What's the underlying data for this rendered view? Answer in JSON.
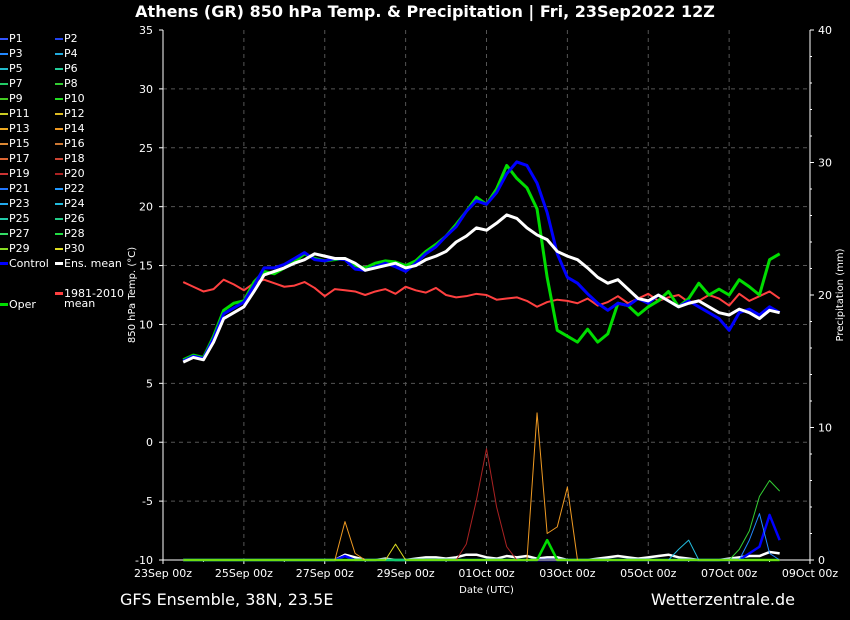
{
  "title": "Athens  (GR)  850 hPa Temp. & Precipitation | Fri, 23Sep2022 12Z",
  "footer_left": "GFS Ensemble, 38N, 23.5E",
  "footer_right": "Wetterzentrale.de",
  "colors": {
    "control": "#0000ff",
    "ens_mean": "#ffffff",
    "climate": "#ff4040",
    "oper": "#00dd00"
  },
  "legend": {
    "members": [
      {
        "label": "P1",
        "color": "#3355ff"
      },
      {
        "label": "P2",
        "color": "#2244ee"
      },
      {
        "label": "P3",
        "color": "#2288ff"
      },
      {
        "label": "P4",
        "color": "#22aadd"
      },
      {
        "label": "P5",
        "color": "#22bbcc"
      },
      {
        "label": "P6",
        "color": "#22cc99"
      },
      {
        "label": "P7",
        "color": "#22cc66"
      },
      {
        "label": "P8",
        "color": "#33cc33"
      },
      {
        "label": "P9",
        "color": "#44cc22"
      },
      {
        "label": "P10",
        "color": "#22dd22"
      },
      {
        "label": "P11",
        "color": "#cccc22"
      },
      {
        "label": "P12",
        "color": "#ddbb22"
      },
      {
        "label": "P13",
        "color": "#eeaa22"
      },
      {
        "label": "P14",
        "color": "#ee9922"
      },
      {
        "label": "P15",
        "color": "#dd8833"
      },
      {
        "label": "P16",
        "color": "#cc7733"
      },
      {
        "label": "P17",
        "color": "#dd6633"
      },
      {
        "label": "P18",
        "color": "#cc4433"
      },
      {
        "label": "P19",
        "color": "#cc3333"
      },
      {
        "label": "P20",
        "color": "#aa2222"
      },
      {
        "label": "P21",
        "color": "#2277ff"
      },
      {
        "label": "P22",
        "color": "#2299ff"
      },
      {
        "label": "P23",
        "color": "#22aaee"
      },
      {
        "label": "P24",
        "color": "#22bbdd"
      },
      {
        "label": "P25",
        "color": "#22ccaa"
      },
      {
        "label": "P26",
        "color": "#22cc88"
      },
      {
        "label": "P27",
        "color": "#33dd66"
      },
      {
        "label": "P28",
        "color": "#22dd44"
      },
      {
        "label": "P29",
        "color": "#88dd22"
      },
      {
        "label": "P30",
        "color": "#dddd22"
      }
    ],
    "control": "Control",
    "ens_mean": "Ens. mean",
    "climate_line1": "1981-2010",
    "climate_line2": "mean",
    "oper": "Oper"
  },
  "chart_data": {
    "type": "line",
    "title": "Athens  (GR)  850 hPa Temp. & Precipitation | Fri, 23Sep2022 12Z",
    "xlabel": "Date (UTC)",
    "ylabel": "850 hPa Temp. (°C)",
    "y2label": "Precipitation (mm)",
    "xlim": [
      0,
      16
    ],
    "ylim": [
      -10,
      35
    ],
    "y2lim": [
      0,
      40
    ],
    "x_ticks": [
      0,
      2,
      4,
      6,
      8,
      10,
      12,
      14,
      16
    ],
    "x_tick_labels": [
      "23Sep 00z",
      "25Sep 00z",
      "27Sep 00z",
      "29Sep 00z",
      "01Oct 00z",
      "03Oct 00z",
      "05Oct 00z",
      "07Oct 00z",
      "09Oct 00z"
    ],
    "y_ticks": [
      -10,
      -5,
      0,
      5,
      10,
      15,
      20,
      25,
      30,
      35
    ],
    "y2_ticks": [
      0,
      10,
      20,
      30,
      40
    ],
    "grid": true,
    "x_step_days": 0.25,
    "x_start": 0.5,
    "series": [
      {
        "name": "Ens. mean",
        "role": "ens_mean",
        "values": [
          6.8,
          7.2,
          7.0,
          8.5,
          10.5,
          11.0,
          11.5,
          12.8,
          14.2,
          14.5,
          14.8,
          15.2,
          15.5,
          16.0,
          15.8,
          15.6,
          15.6,
          15.2,
          14.6,
          14.8,
          15.0,
          15.2,
          14.8,
          15.0,
          15.5,
          15.8,
          16.2,
          17.0,
          17.5,
          18.2,
          18.0,
          18.6,
          19.3,
          19.0,
          18.2,
          17.6,
          17.2,
          16.2,
          15.8,
          15.5,
          14.8,
          14.0,
          13.5,
          13.8,
          13.0,
          12.2,
          12.0,
          12.5,
          12.0,
          11.5,
          11.8,
          12.0,
          11.5,
          11.0,
          10.8,
          11.3,
          11.0,
          10.5,
          11.2,
          11.0
        ]
      },
      {
        "name": "Control",
        "role": "control",
        "values": [
          6.9,
          7.3,
          7.1,
          8.8,
          10.9,
          11.4,
          11.9,
          13.3,
          14.8,
          14.8,
          15.1,
          15.6,
          16.1,
          15.5,
          15.4,
          15.6,
          15.5,
          14.7,
          14.6,
          14.9,
          15.2,
          14.9,
          14.5,
          15.2,
          16.0,
          16.6,
          17.5,
          18.3,
          19.6,
          20.5,
          20.2,
          21.2,
          22.8,
          23.8,
          23.5,
          22.0,
          19.5,
          16.0,
          14.0,
          13.5,
          12.6,
          11.8,
          11.2,
          11.8,
          11.6,
          12.2,
          11.8,
          12.5,
          12.0,
          11.5,
          12.0,
          11.5,
          11.0,
          10.5,
          9.5,
          11.0,
          11.3,
          10.8,
          11.5,
          11.0
        ]
      },
      {
        "name": "Oper",
        "role": "oper",
        "values": [
          7.0,
          7.4,
          7.2,
          9.0,
          11.2,
          11.8,
          12.0,
          13.6,
          14.5,
          14.3,
          14.8,
          15.3,
          16.0,
          15.6,
          15.4,
          15.5,
          15.6,
          15.0,
          14.8,
          15.2,
          15.4,
          15.3,
          15.0,
          15.4,
          16.2,
          16.8,
          17.5,
          18.5,
          19.6,
          20.8,
          20.2,
          21.5,
          23.5,
          22.4,
          21.6,
          19.8,
          14.0,
          9.5,
          9.0,
          8.5,
          9.6,
          8.5,
          9.2,
          11.8,
          11.6,
          10.8,
          11.5,
          12.0,
          12.8,
          11.5,
          12.2,
          13.5,
          12.5,
          13.0,
          12.5,
          13.8,
          13.2,
          12.5,
          15.5,
          16.0
        ]
      },
      {
        "name": "1981-2010 mean",
        "role": "climate",
        "values": [
          13.6,
          13.2,
          12.8,
          13.0,
          13.8,
          13.4,
          12.9,
          13.5,
          13.8,
          13.5,
          13.2,
          13.3,
          13.6,
          13.1,
          12.4,
          13.0,
          12.9,
          12.8,
          12.5,
          12.8,
          13.0,
          12.6,
          13.2,
          12.9,
          12.7,
          13.1,
          12.5,
          12.3,
          12.4,
          12.6,
          12.5,
          12.1,
          12.2,
          12.3,
          12.0,
          11.5,
          11.9,
          12.1,
          12.0,
          11.8,
          12.2,
          11.6,
          11.9,
          12.4,
          11.8,
          12.2,
          12.6,
          12.0,
          12.3,
          12.5,
          11.9,
          12.0,
          12.5,
          12.2,
          11.6,
          12.6,
          12.0,
          12.4,
          12.8,
          12.2
        ]
      }
    ],
    "precip_series": [
      {
        "name": "Ens. mean",
        "role": "ens_mean",
        "values": [
          0,
          0,
          0,
          0,
          0,
          0,
          0,
          0,
          0,
          0,
          0,
          0,
          0,
          0,
          0,
          0,
          0.4,
          0.2,
          0,
          0,
          0.1,
          0,
          0,
          0.1,
          0.2,
          0.2,
          0.1,
          0.2,
          0.4,
          0.4,
          0.2,
          0.1,
          0.3,
          0.2,
          0.3,
          0.1,
          0.2,
          0.2,
          0,
          0,
          0,
          0.1,
          0.2,
          0.3,
          0.2,
          0.1,
          0.2,
          0.3,
          0.4,
          0.2,
          0.1,
          0,
          0,
          0,
          0.1,
          0.2,
          0.3,
          0.3,
          0.6,
          0.5
        ]
      },
      {
        "name": "Control",
        "role": "control",
        "values": [
          0,
          0,
          0,
          0,
          0,
          0,
          0,
          0,
          0,
          0,
          0,
          0,
          0,
          0,
          0,
          0,
          0.3,
          0,
          0,
          0,
          0,
          0,
          0,
          0,
          0,
          0,
          0,
          0,
          0,
          0,
          0,
          0,
          0,
          0,
          0,
          0,
          0,
          0,
          0,
          0,
          0,
          0,
          0,
          0,
          0,
          0,
          0,
          0,
          0,
          0,
          0,
          0,
          0,
          0,
          0,
          0,
          0.5,
          1.0,
          3.4,
          1.5
        ]
      },
      {
        "name": "Oper",
        "role": "oper",
        "values": [
          0,
          0,
          0,
          0,
          0,
          0,
          0,
          0,
          0,
          0,
          0,
          0,
          0,
          0,
          0,
          0,
          0,
          0,
          0,
          0,
          0,
          0,
          0,
          0,
          0,
          0,
          0,
          0,
          0,
          0,
          0,
          0,
          0,
          0,
          0,
          0,
          1.5,
          0,
          0,
          0,
          0,
          0,
          0,
          0,
          0,
          0,
          0,
          0,
          0,
          0,
          0,
          0,
          0,
          0,
          0,
          0,
          0,
          0,
          0,
          0
        ]
      },
      {
        "name": "P3",
        "role": "member",
        "values": [
          0,
          0,
          0,
          0,
          0,
          0,
          0,
          0,
          0,
          0,
          0,
          0,
          0,
          0,
          0,
          0,
          0,
          0,
          0,
          0,
          0,
          0,
          0,
          0,
          0,
          0,
          0,
          0,
          0,
          0,
          0,
          0,
          0,
          0,
          0,
          0,
          0,
          0,
          0,
          0,
          0,
          0,
          0,
          0,
          0,
          0,
          0,
          0,
          0,
          0,
          0,
          0,
          0,
          0,
          0,
          0,
          1.5,
          3.5,
          0.5,
          0
        ]
      },
      {
        "name": "P8",
        "role": "member",
        "values": [
          0,
          0,
          0,
          0,
          0,
          0,
          0,
          0,
          0,
          0,
          0,
          0,
          0,
          0,
          0,
          0,
          0,
          0,
          0,
          0,
          0,
          0,
          0,
          0,
          0,
          0,
          0,
          0,
          0,
          0,
          0,
          0,
          0,
          0,
          0,
          0,
          0,
          0,
          0,
          0,
          0,
          0,
          0,
          0,
          0,
          0,
          0,
          0,
          0,
          0,
          0,
          0,
          0,
          0,
          0,
          0.8,
          2.2,
          4.8,
          6.0,
          5.2
        ]
      },
      {
        "name": "P14",
        "role": "member",
        "values": [
          0,
          0,
          0,
          0,
          0,
          0,
          0,
          0,
          0,
          0,
          0,
          0,
          0,
          0,
          0,
          0,
          2.9,
          0.5,
          0,
          0,
          0,
          0,
          0,
          0,
          0,
          0,
          0,
          0,
          0,
          0,
          0,
          0,
          0,
          0,
          0,
          11.1,
          2.0,
          2.5,
          5.5,
          0,
          0,
          0,
          0,
          0,
          0,
          0,
          0,
          0,
          0,
          0,
          0,
          0,
          0,
          0,
          0,
          0,
          0,
          0,
          0,
          0
        ]
      },
      {
        "name": "P20",
        "role": "member",
        "values": [
          0,
          0,
          0,
          0,
          0,
          0,
          0,
          0,
          0,
          0,
          0,
          0,
          0,
          0,
          0,
          0,
          0,
          0,
          0,
          0,
          0,
          0,
          0,
          0,
          0,
          0,
          0,
          0,
          1.2,
          4.5,
          8.4,
          4.0,
          1.0,
          0,
          0,
          0,
          0,
          0,
          0,
          0,
          0,
          0,
          0,
          0,
          0,
          0,
          0,
          0,
          0,
          0,
          0,
          0,
          0,
          0,
          0,
          0,
          0,
          0,
          0,
          0
        ]
      },
      {
        "name": "P24",
        "role": "member",
        "values": [
          0,
          0,
          0,
          0,
          0,
          0,
          0,
          0,
          0,
          0,
          0,
          0,
          0,
          0,
          0,
          0,
          0,
          0,
          0,
          0,
          0,
          0,
          0,
          0,
          0,
          0,
          0,
          0,
          0,
          0,
          0,
          0,
          0,
          0,
          0,
          0,
          0,
          0,
          0,
          0,
          0,
          0,
          0,
          0,
          0,
          0,
          0,
          0,
          0,
          0.8,
          1.5,
          0,
          0,
          0,
          0,
          0,
          0,
          0,
          0,
          0
        ]
      },
      {
        "name": "P30",
        "role": "member",
        "values": [
          0,
          0,
          0,
          0,
          0,
          0,
          0,
          0,
          0,
          0,
          0,
          0,
          0,
          0,
          0,
          0,
          0,
          0,
          0,
          0,
          0,
          1.2,
          0,
          0,
          0,
          0,
          0,
          0,
          0,
          0,
          0,
          0,
          0,
          0,
          0,
          0,
          0,
          0,
          0,
          0,
          0,
          0,
          0,
          0,
          0,
          0,
          0,
          0,
          0,
          0,
          0,
          0,
          0,
          0,
          0,
          0,
          0,
          0,
          0,
          0
        ]
      }
    ]
  }
}
